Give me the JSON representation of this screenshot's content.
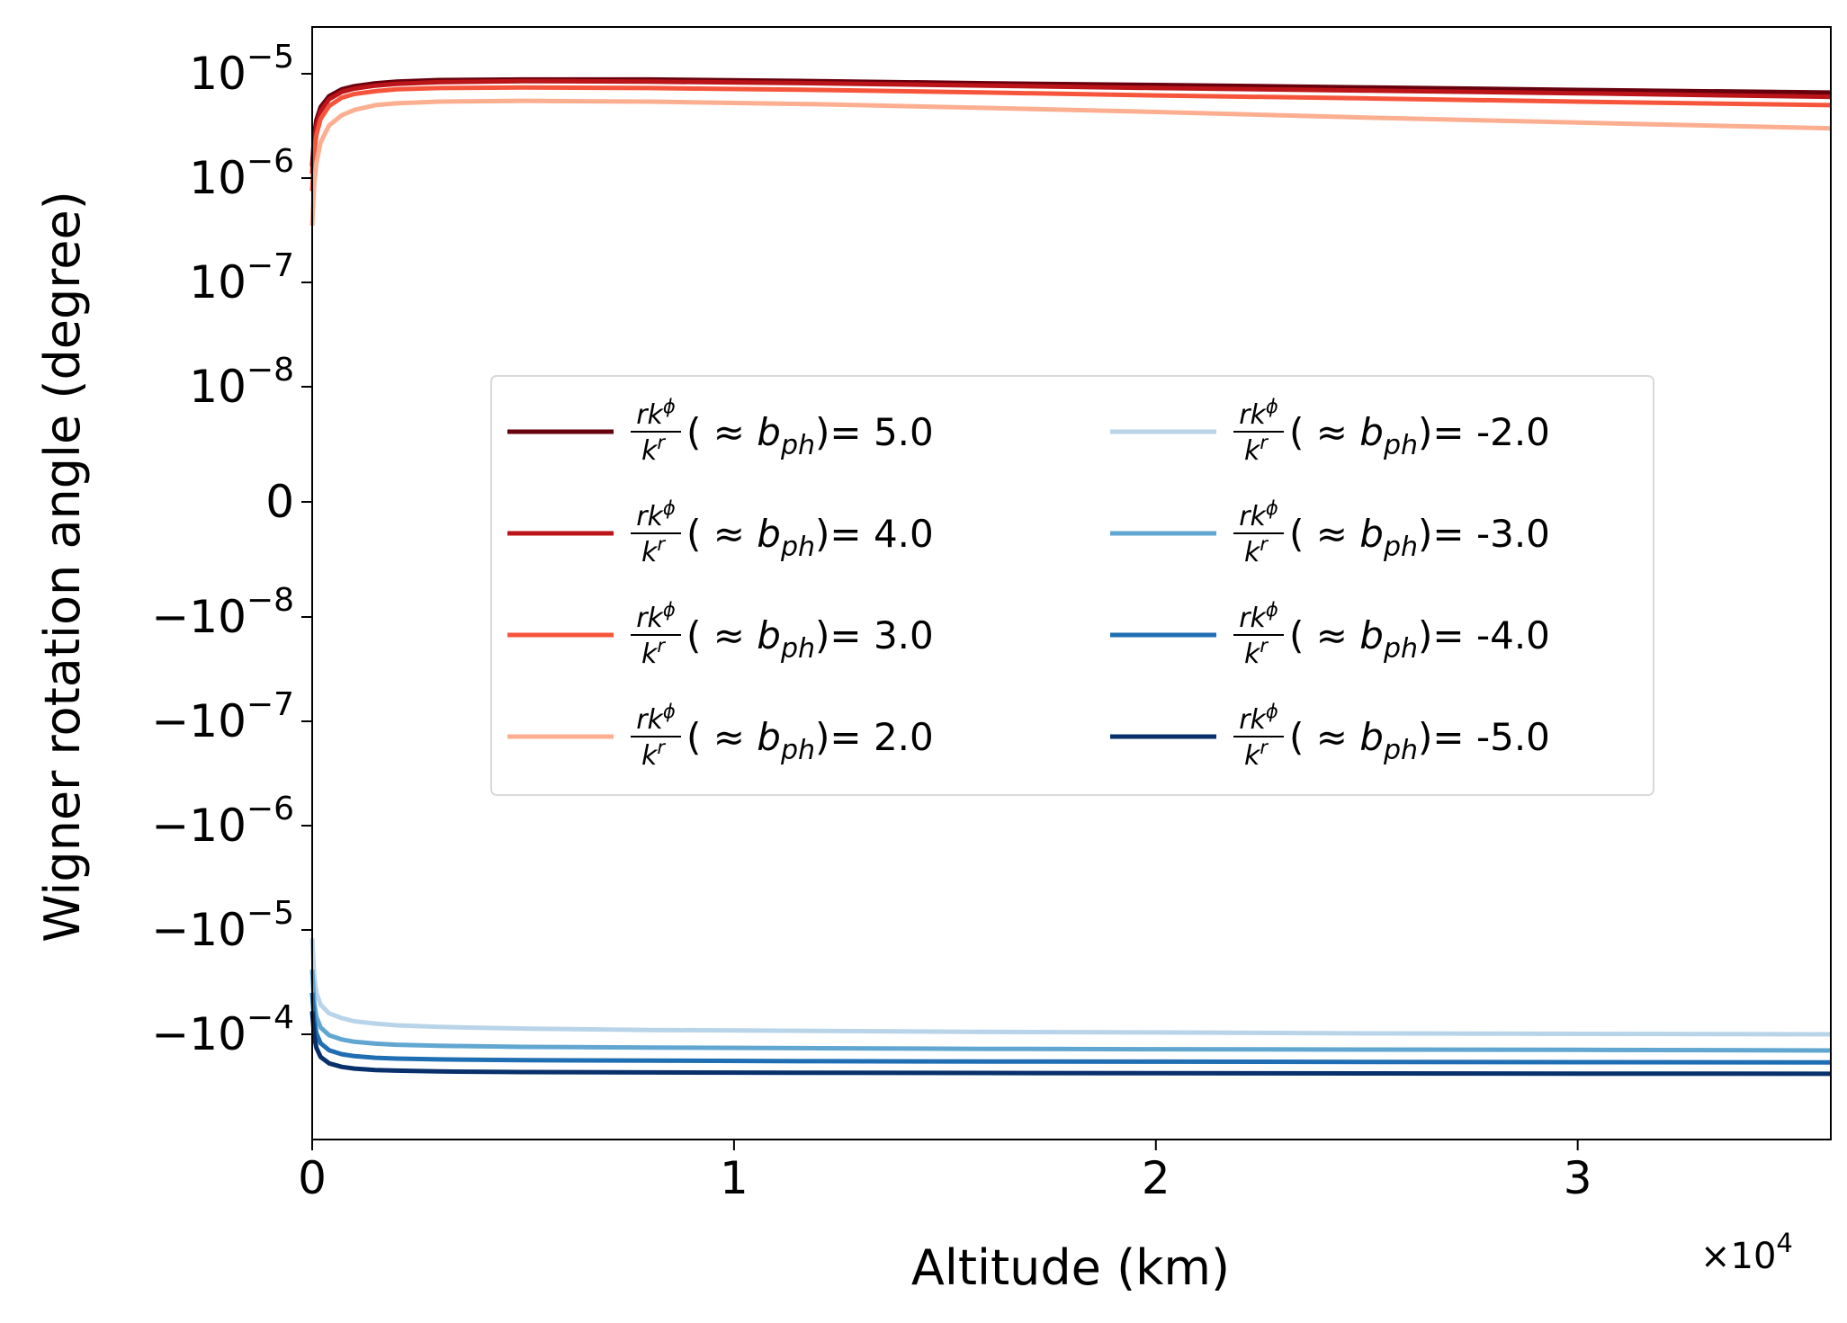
{
  "chart_data": {
    "type": "line",
    "xlabel": "Altitude (km)",
    "ylabel": "Wigner rotation angle (degree)",
    "x_multiplier_label": "×10",
    "x_multiplier_exponent": "4",
    "xlim": [
      0,
      36000
    ],
    "yscale": "symlog",
    "y_linthresh": 1e-08,
    "ylim": [
      -0.0003,
      2.5e-05
    ],
    "x_ticks": [
      {
        "value": 0,
        "label": "0"
      },
      {
        "value": 10000,
        "label": "1"
      },
      {
        "value": 20000,
        "label": "2"
      },
      {
        "value": 30000,
        "label": "3"
      }
    ],
    "y_ticks": [
      {
        "value": 1e-05,
        "base": "10",
        "exp": "−5"
      },
      {
        "value": 1e-06,
        "base": "10",
        "exp": "−6"
      },
      {
        "value": 1e-07,
        "base": "10",
        "exp": "−7"
      },
      {
        "value": 1e-08,
        "base": "10",
        "exp": "−8"
      },
      {
        "value": 0,
        "base": "0",
        "exp": ""
      },
      {
        "value": -1e-08,
        "base": "−10",
        "exp": "−8"
      },
      {
        "value": -1e-07,
        "base": "−10",
        "exp": "−7"
      },
      {
        "value": -1e-06,
        "base": "−10",
        "exp": "−6"
      },
      {
        "value": -1e-05,
        "base": "−10",
        "exp": "−5"
      },
      {
        "value": -0.0001,
        "base": "−10",
        "exp": "−4"
      }
    ],
    "grid": false,
    "legend_placement": "center",
    "legend_columns": 2,
    "legend_prefix": "(",
    "legend_approx": "≈",
    "legend_b": "b",
    "legend_b_sub": "ph",
    "legend_suffix": ")=",
    "legend_frac_num": "rk",
    "legend_frac_num_sup": "ϕ",
    "legend_frac_den": "k",
    "legend_frac_den_sup": "r",
    "x": [
      0,
      50,
      100,
      200,
      400,
      700,
      1000,
      1500,
      2000,
      3000,
      5000,
      8000,
      12000,
      16000,
      20000,
      25000,
      30000,
      36000
    ],
    "series": [
      {
        "name": "5.0",
        "color": "#67000d",
        "values": [
          1.3e-06,
          2.6e-06,
          3.6e-06,
          4.8e-06,
          6.1e-06,
          7.1e-06,
          7.6e-06,
          8.1e-06,
          8.4e-06,
          8.7e-06,
          8.8e-06,
          8.8e-06,
          8.5e-06,
          8.1e-06,
          7.8e-06,
          7.4e-06,
          7e-06,
          6.6e-06
        ]
      },
      {
        "name": "4.0",
        "color": "#bb1419",
        "values": [
          1.1e-06,
          2.3e-06,
          3.2e-06,
          4.4e-06,
          5.7e-06,
          6.7e-06,
          7.2e-06,
          7.7e-06,
          8e-06,
          8.3e-06,
          8.5e-06,
          8.4e-06,
          8.1e-06,
          7.7e-06,
          7.3e-06,
          6.9e-06,
          6.5e-06,
          6e-06
        ]
      },
      {
        "name": "3.0",
        "color": "#f6553c",
        "values": [
          7.5e-07,
          1.8e-06,
          2.6e-06,
          3.7e-06,
          4.9e-06,
          5.9e-06,
          6.4e-06,
          6.8e-06,
          7.1e-06,
          7.3e-06,
          7.4e-06,
          7.3e-06,
          7e-06,
          6.6e-06,
          6.2e-06,
          5.8e-06,
          5.4e-06,
          5e-06
        ]
      },
      {
        "name": "2.0",
        "color": "#fcae91",
        "values": [
          3.5e-07,
          9e-07,
          1.4e-06,
          2.2e-06,
          3.2e-06,
          4e-06,
          4.5e-06,
          5e-06,
          5.2e-06,
          5.4e-06,
          5.5e-06,
          5.4e-06,
          5.1e-06,
          4.7e-06,
          4.3e-06,
          3.8e-06,
          3.4e-06,
          3e-06
        ]
      },
      {
        "name": "-2.0",
        "color": "#b9d4e9",
        "values": [
          -1.2e-05,
          -2.8e-05,
          -4e-05,
          -5.2e-05,
          -6.3e-05,
          -7e-05,
          -7.5e-05,
          -7.9e-05,
          -8.2e-05,
          -8.5e-05,
          -8.8e-05,
          -9.1e-05,
          -9.3e-05,
          -9.5e-05,
          -9.6e-05,
          -9.8e-05,
          -9.9e-05,
          -0.0001
        ]
      },
      {
        "name": "-3.0",
        "color": "#61a6d1",
        "values": [
          -2.4e-05,
          -5e-05,
          -6.8e-05,
          -8.6e-05,
          -0.000102,
          -0.000112,
          -0.000118,
          -0.000123,
          -0.000126,
          -0.000129,
          -0.000132,
          -0.000134,
          -0.000136,
          -0.000138,
          -0.000139,
          -0.00014,
          -0.000141,
          -0.000143
        ]
      },
      {
        "name": "-4.0",
        "color": "#1f6db2",
        "values": [
          -4e-05,
          -7.5e-05,
          -9.8e-05,
          -0.000122,
          -0.000142,
          -0.000155,
          -0.000162,
          -0.000168,
          -0.000171,
          -0.000174,
          -0.000177,
          -0.000179,
          -0.000181,
          -0.000182,
          -0.000183,
          -0.000184,
          -0.000185,
          -0.000186
        ]
      },
      {
        "name": "-5.0",
        "color": "#08306b",
        "values": [
          -6e-05,
          -0.000105,
          -0.000135,
          -0.000165,
          -0.00019,
          -0.000205,
          -0.000213,
          -0.00022,
          -0.000223,
          -0.000227,
          -0.00023,
          -0.000232,
          -0.000234,
          -0.000235,
          -0.000236,
          -0.000237,
          -0.000238,
          -0.000239
        ]
      }
    ]
  }
}
